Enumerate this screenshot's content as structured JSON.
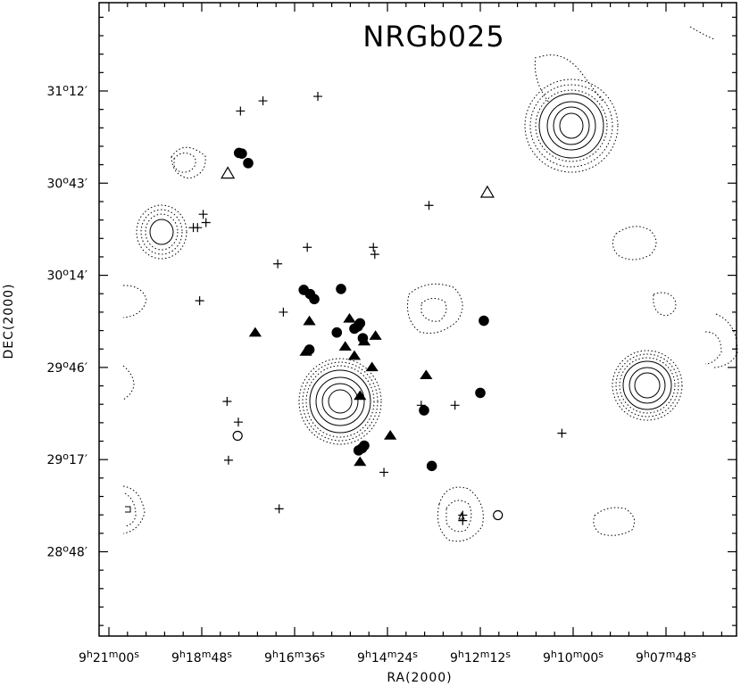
{
  "chart_data": {
    "type": "scatter",
    "title": "NRGb025",
    "xlabel": "RA(2000)",
    "ylabel": "DEC(2000)",
    "x_tick_labels": [
      "9h21m00s",
      "9h18m48s",
      "9h16m36s",
      "9h14m24s",
      "9h12m12s",
      "9h10m00s",
      "9h07m48s"
    ],
    "y_tick_labels": [
      "31o12′",
      "30o43′",
      "30o14′",
      "29o46′",
      "29o17′",
      "28o48′"
    ],
    "x_tick_label_parts": [
      {
        "h": "9",
        "m": "21",
        "s": "00"
      },
      {
        "h": "9",
        "m": "18",
        "s": "48"
      },
      {
        "h": "9",
        "m": "16",
        "s": "36"
      },
      {
        "h": "9",
        "m": "14",
        "s": "24"
      },
      {
        "h": "9",
        "m": "12",
        "s": "12"
      },
      {
        "h": "9",
        "m": "10",
        "s": "00"
      },
      {
        "h": "9",
        "m": "07",
        "s": "48"
      }
    ],
    "y_tick_label_parts": [
      {
        "d": "31",
        "m": "12′"
      },
      {
        "d": "30",
        "m": "43′"
      },
      {
        "d": "30",
        "m": "14′"
      },
      {
        "d": "29",
        "m": "46′"
      },
      {
        "d": "29",
        "m": "17′"
      },
      {
        "d": "28",
        "m": "48′"
      }
    ],
    "x_tick_values_sec": [
      0,
      132,
      264,
      396,
      528,
      660,
      792
    ],
    "y_tick_values_arcmin": [
      1872,
      1843,
      1814,
      1786,
      1757,
      1728
    ],
    "xlim_sec": [
      -12,
      840
    ],
    "ylim_arcmin": [
      1703,
      1899
    ],
    "axis_units": {
      "x": "seconds of RA west of 9h21m00s",
      "y": "arcminutes of declination"
    },
    "grid": false,
    "series": [
      {
        "marker": "circle-filled",
        "points": [
          [
            185,
            1852.5
          ],
          [
            189,
            1852.3
          ],
          [
            198,
            1849.3
          ],
          [
            277,
            1809.4
          ],
          [
            286,
            1808.1
          ],
          [
            292,
            1806.5
          ],
          [
            330,
            1809.7
          ],
          [
            324,
            1796.0
          ],
          [
            357,
            1798.9
          ],
          [
            354,
            1797.9
          ],
          [
            349,
            1797.2
          ],
          [
            361,
            1794.2
          ],
          [
            285,
            1790.6
          ],
          [
            528,
            1777.0
          ],
          [
            533,
            1799.7
          ],
          [
            448,
            1771.5
          ],
          [
            363,
            1760.4
          ],
          [
            360,
            1759.6
          ],
          [
            355,
            1758.9
          ],
          [
            459,
            1754.0
          ]
        ]
      },
      {
        "marker": "triangle-filled",
        "points": [
          [
            208,
            1796.0
          ],
          [
            285,
            1799.6
          ],
          [
            342,
            1800.4
          ],
          [
            336,
            1791.6
          ],
          [
            379,
            1795.0
          ],
          [
            451,
            1782.6
          ],
          [
            349,
            1788.7
          ],
          [
            363,
            1793.2
          ],
          [
            374,
            1785.1
          ],
          [
            357,
            1776.1
          ],
          [
            400,
            1763.6
          ],
          [
            357,
            1755.3
          ],
          [
            280,
            1790.0
          ]
        ]
      },
      {
        "marker": "triangle-open",
        "points": [
          [
            169,
            1846.0
          ],
          [
            538,
            1840.0
          ]
        ]
      },
      {
        "marker": "circle-open",
        "points": [
          [
            183,
            1763.5
          ],
          [
            553,
            1738.5
          ]
        ]
      },
      {
        "marker": "plus",
        "points": [
          [
            187,
            1865.7
          ],
          [
            219,
            1868.9
          ],
          [
            297,
            1870.3
          ],
          [
            455,
            1836.0
          ],
          [
            134,
            1833.2
          ],
          [
            138,
            1830.6
          ],
          [
            120,
            1829.0
          ],
          [
            126,
            1829.0
          ],
          [
            282,
            1822.8
          ],
          [
            376,
            1822.8
          ],
          [
            378,
            1820.6
          ],
          [
            240,
            1817.6
          ],
          [
            129,
            1806.0
          ],
          [
            248,
            1802.4
          ],
          [
            168,
            1774.3
          ],
          [
            444,
            1773.1
          ],
          [
            492,
            1773.1
          ],
          [
            644,
            1764.3
          ],
          [
            184,
            1767.8
          ],
          [
            170,
            1755.8
          ],
          [
            242,
            1740.5
          ],
          [
            503,
            1738.5
          ],
          [
            503,
            1736.8
          ],
          [
            391,
            1752.0
          ]
        ]
      }
    ],
    "contours": [
      {
        "cx": 640,
        "cy": 141,
        "solid_rx": [
          13,
          20,
          27,
          36
        ],
        "solid_ry": [
          14,
          21,
          27,
          36
        ],
        "dotted_rx": [
          40,
          46,
          52
        ],
        "dotted_ry": [
          40,
          46,
          52
        ],
        "blob": [
          [
            600,
            64
          ],
          [
            622,
            58
          ],
          [
            650,
            82
          ],
          [
            660,
            100
          ]
        ]
      },
      {
        "cx": 381,
        "cy": 450,
        "solid_rx": [
          13,
          20,
          27,
          34
        ],
        "solid_ry": [
          13,
          20,
          27,
          35
        ],
        "dotted_rx": [
          38,
          42,
          46
        ],
        "dotted_ry": [
          40,
          44,
          48
        ]
      },
      {
        "cx": 725,
        "cy": 432,
        "solid_rx": [
          14,
          20,
          27
        ],
        "solid_ry": [
          14,
          20,
          27
        ],
        "dotted_rx": [
          31,
          35,
          39
        ],
        "dotted_ry": [
          31,
          35,
          39
        ]
      },
      {
        "cx": 181,
        "cy": 260,
        "solid_rx": [
          13
        ],
        "solid_ry": [
          14
        ],
        "dotted_rx": [
          18,
          23,
          28
        ],
        "dotted_ry": [
          20,
          25,
          30
        ]
      }
    ]
  }
}
